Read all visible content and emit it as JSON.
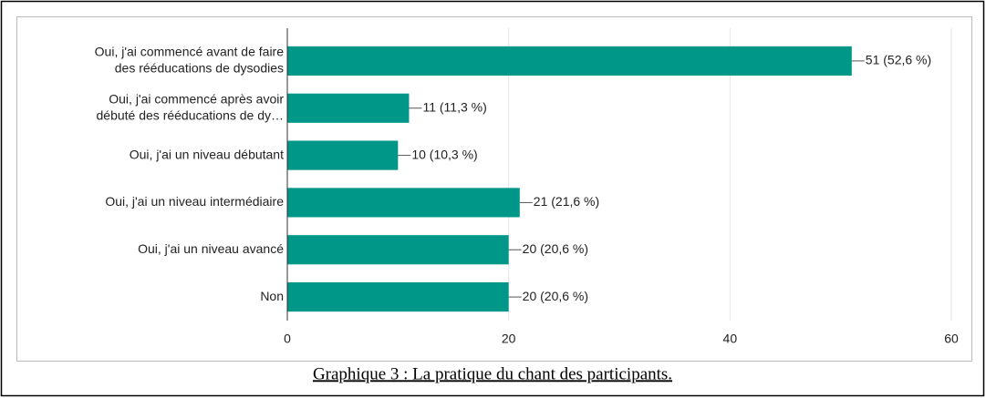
{
  "chart_data": {
    "type": "barh",
    "categories": [
      [
        "Oui, j'ai commencé avant de faire",
        "des rééducations de dysodies"
      ],
      [
        "Oui, j'ai commencé après avoir",
        "débuté des rééducations de dy…"
      ],
      [
        "Oui, j'ai un niveau débutant"
      ],
      [
        "Oui, j'ai un niveau intermédiaire"
      ],
      [
        "Oui, j'ai un niveau avancé"
      ],
      [
        "Non"
      ]
    ],
    "values": [
      51,
      11,
      10,
      21,
      20,
      20
    ],
    "value_labels": [
      "51 (52,6 %)",
      "11 (11,3 %)",
      "10 (10,3 %)",
      "21 (21,6 %)",
      "20 (20,6 %)",
      "20 (20,6 %)"
    ],
    "color": "#009688",
    "xlim": [
      0,
      60
    ],
    "xticks": [
      0,
      20,
      40,
      60
    ],
    "grid": true,
    "caption": "Graphique 3 : La pratique du chant des participants."
  }
}
